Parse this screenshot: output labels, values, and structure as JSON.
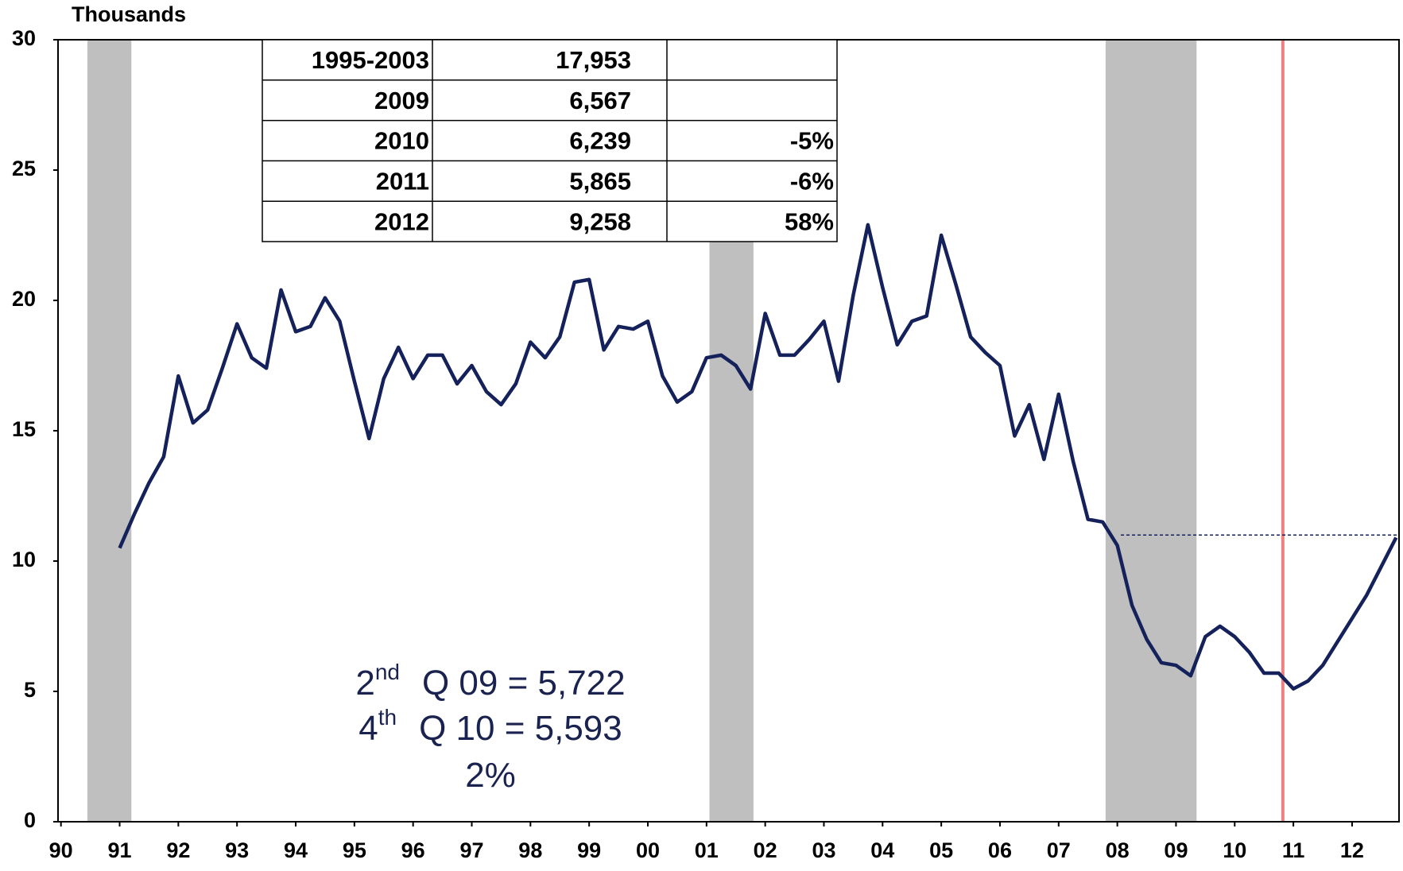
{
  "chart_data": {
    "type": "line",
    "y_label": "Thousands",
    "xlim": [
      1989.95,
      2012.8
    ],
    "ylim": [
      0,
      30
    ],
    "yticks": [
      0,
      5,
      10,
      15,
      20,
      25,
      30
    ],
    "xticks": [
      {
        "value": 1990,
        "label": "90"
      },
      {
        "value": 1991,
        "label": "91"
      },
      {
        "value": 1992,
        "label": "92"
      },
      {
        "value": 1993,
        "label": "93"
      },
      {
        "value": 1994,
        "label": "94"
      },
      {
        "value": 1995,
        "label": "95"
      },
      {
        "value": 1996,
        "label": "96"
      },
      {
        "value": 1997,
        "label": "97"
      },
      {
        "value": 1998,
        "label": "98"
      },
      {
        "value": 1999,
        "label": "99"
      },
      {
        "value": 2000,
        "label": "00"
      },
      {
        "value": 2001,
        "label": "01"
      },
      {
        "value": 2002,
        "label": "02"
      },
      {
        "value": 2003,
        "label": "03"
      },
      {
        "value": 2004,
        "label": "04"
      },
      {
        "value": 2005,
        "label": "05"
      },
      {
        "value": 2006,
        "label": "06"
      },
      {
        "value": 2007,
        "label": "07"
      },
      {
        "value": 2008,
        "label": "08"
      },
      {
        "value": 2009,
        "label": "09"
      },
      {
        "value": 2010,
        "label": "10"
      },
      {
        "value": 2011,
        "label": "11"
      },
      {
        "value": 2012,
        "label": "12"
      }
    ],
    "x": [
      1991,
      1991.25,
      1991.5,
      1991.75,
      1992,
      1992.25,
      1992.5,
      1992.75,
      1993,
      1993.25,
      1993.5,
      1993.75,
      1994,
      1994.25,
      1994.5,
      1994.75,
      1995,
      1995.25,
      1995.5,
      1995.75,
      1996,
      1996.25,
      1996.5,
      1996.75,
      1997,
      1997.25,
      1997.5,
      1997.75,
      1998,
      1998.25,
      1998.5,
      1998.75,
      1999,
      1999.25,
      1999.5,
      1999.75,
      2000,
      2000.25,
      2000.5,
      2000.75,
      2001,
      2001.25,
      2001.5,
      2001.75,
      2002,
      2002.25,
      2002.5,
      2002.75,
      2003,
      2003.25,
      2003.5,
      2003.75,
      2004,
      2004.25,
      2004.5,
      2004.75,
      2005,
      2005.25,
      2005.5,
      2005.75,
      2006,
      2006.25,
      2006.5,
      2006.75,
      2007,
      2007.25,
      2007.5,
      2007.75,
      2008,
      2008.25,
      2008.5,
      2008.75,
      2009,
      2009.25,
      2009.5,
      2009.75,
      2010,
      2010.25,
      2010.5,
      2010.75,
      2011,
      2011.25,
      2011.5,
      2011.75,
      2012,
      2012.25,
      2012.5,
      2012.75
    ],
    "series": [
      {
        "color": "#14215a",
        "values": [
          10.5,
          11.8,
          13.0,
          14.0,
          17.1,
          15.3,
          15.8,
          17.4,
          19.1,
          17.8,
          17.4,
          20.4,
          18.8,
          19.0,
          20.1,
          19.2,
          16.9,
          14.7,
          17.0,
          18.2,
          17.0,
          17.9,
          17.9,
          16.8,
          17.5,
          16.5,
          16.0,
          16.8,
          18.4,
          17.8,
          18.6,
          20.7,
          20.8,
          18.1,
          19.0,
          18.9,
          19.2,
          17.1,
          16.1,
          16.5,
          17.8,
          17.9,
          17.5,
          16.6,
          19.5,
          17.9,
          17.9,
          18.5,
          19.2,
          16.9,
          20.2,
          22.9,
          20.5,
          18.3,
          19.2,
          19.4,
          22.5,
          20.6,
          18.6,
          18.0,
          17.5,
          14.8,
          16.0,
          13.9,
          16.4,
          13.8,
          11.6,
          11.5,
          10.6,
          8.3,
          7.0,
          6.1,
          6.0,
          5.6,
          7.1,
          7.5,
          7.1,
          6.5,
          5.7,
          5.7,
          5.1,
          5.4,
          6.0,
          6.9,
          7.8,
          8.7,
          9.8,
          10.9
        ]
      }
    ],
    "shaded_periods": {
      "color": "#bfbfbf",
      "ranges": [
        [
          1990.45,
          1991.2
        ],
        [
          2001.05,
          2001.8
        ],
        [
          2007.8,
          2009.35
        ]
      ]
    },
    "vertical_line": {
      "x": 2010.82,
      "color": "#f08080"
    },
    "reference_line": {
      "x": [
        2008.06,
        2012.8
      ],
      "y": 11.0,
      "color": "#14215a"
    },
    "table": {
      "rows": [
        [
          "1995-2003",
          "17,953",
          null
        ],
        [
          "2009",
          "6,567",
          null
        ],
        [
          "2010",
          "6,239",
          "-5%"
        ],
        [
          "2011",
          "5,865",
          "-6%"
        ],
        [
          "2012",
          "9,258",
          "58%"
        ]
      ]
    },
    "annotation": {
      "color": "#1a2350",
      "lines": [
        {
          "number": "2",
          "suffix": "nd",
          "text": "Q 09 =  5,722"
        },
        {
          "number": "4",
          "suffix": "th",
          "text": "Q 10 =  5,593"
        },
        {
          "text": "2%"
        }
      ]
    }
  }
}
